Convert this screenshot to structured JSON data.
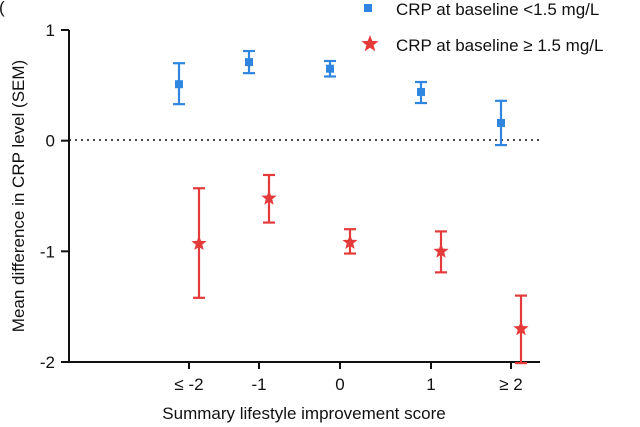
{
  "chart_data": {
    "type": "scatter",
    "panel_label": "(",
    "xlabel": "Summary lifestyle improvement score",
    "ylabel": "Mean difference in CRP level (SEM)",
    "categories": [
      "≤ -2",
      "-1",
      "0",
      "1",
      "≥ 2"
    ],
    "ylim": [
      -2,
      1
    ],
    "yticks": [
      1,
      0,
      -1,
      -2
    ],
    "reference_line": {
      "y": 0,
      "style": "dotted"
    },
    "grid": false,
    "legend_placement": "top-right",
    "series": [
      {
        "name": "CRP at baseline <1.5 mg/L",
        "marker": "square",
        "color": "#2f86e0",
        "values": [
          0.51,
          0.71,
          0.65,
          0.44,
          0.16
        ],
        "err_low": [
          0.33,
          0.61,
          0.58,
          0.34,
          -0.04
        ],
        "err_high": [
          0.7,
          0.81,
          0.72,
          0.53,
          0.36
        ]
      },
      {
        "name": "CRP at baseline ≥ 1.5 mg/L",
        "marker": "star",
        "color": "#e53a3a",
        "values": [
          -0.93,
          -0.52,
          -0.92,
          -1.0,
          -1.7
        ],
        "err_low": [
          -1.42,
          -0.74,
          -1.02,
          -1.19,
          -2.01
        ],
        "err_high": [
          -0.43,
          -0.31,
          -0.8,
          -0.82,
          -1.4
        ]
      }
    ]
  }
}
